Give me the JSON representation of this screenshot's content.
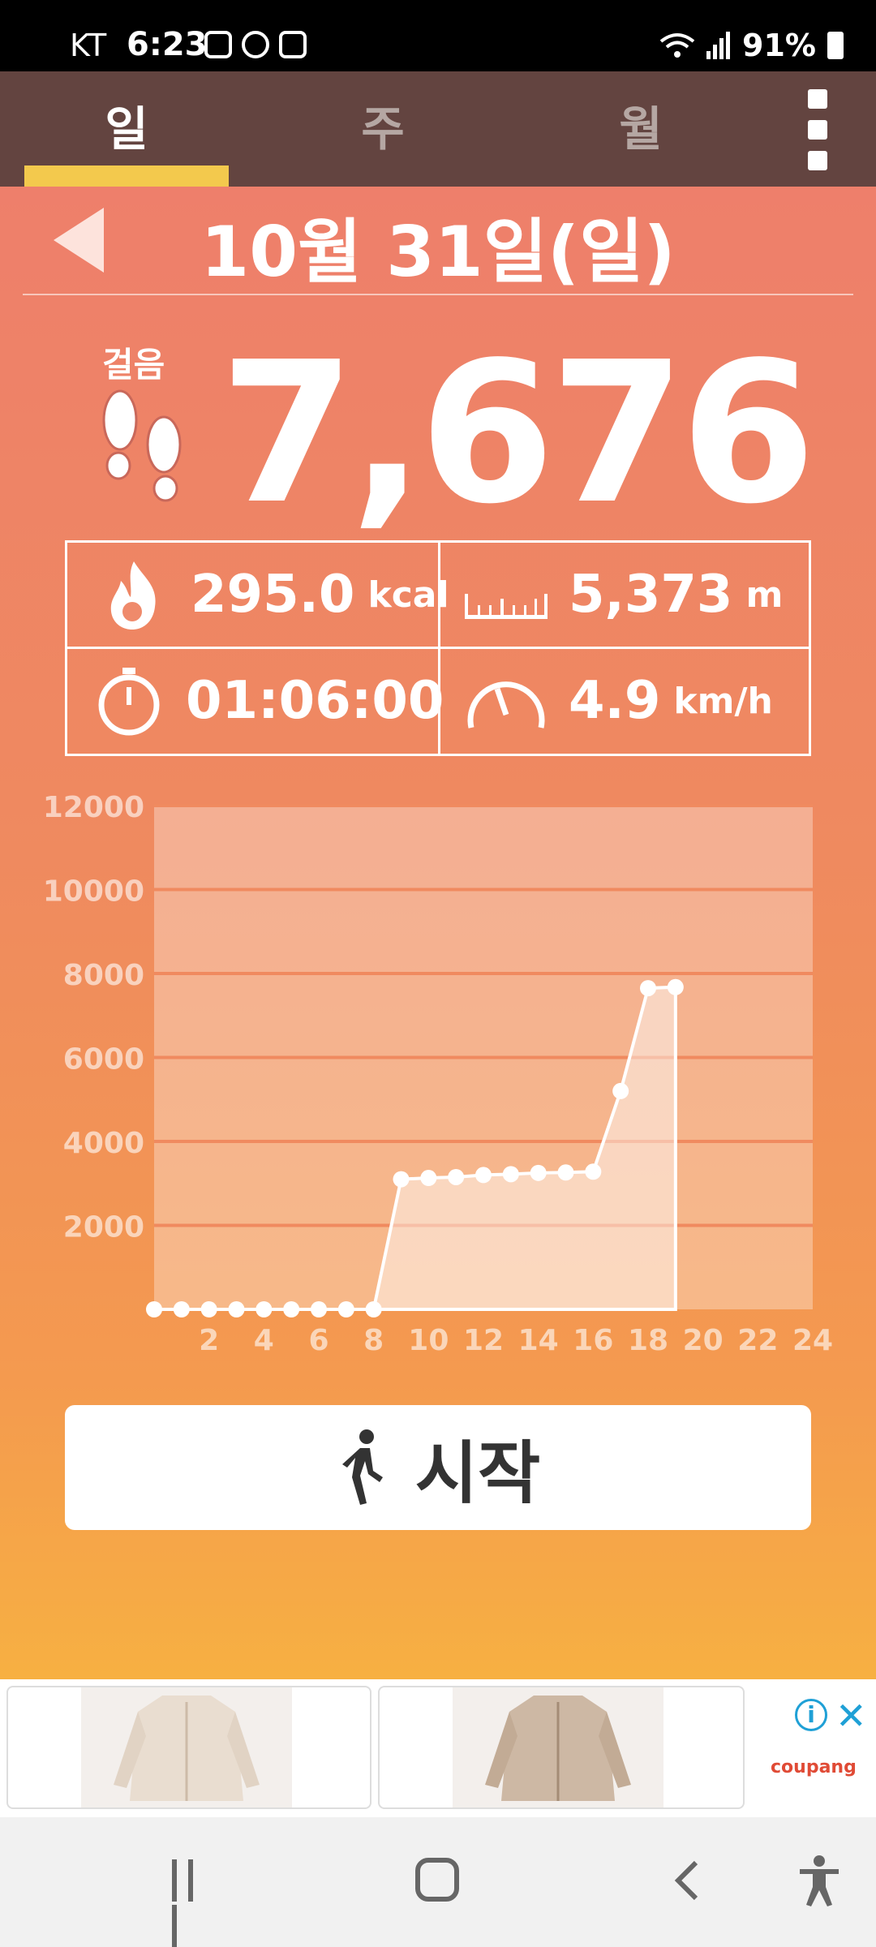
{
  "status_bar": {
    "carrier": "KT",
    "time": "6:23",
    "battery": "91%"
  },
  "tabs": [
    {
      "label": "일",
      "active": true
    },
    {
      "label": "주",
      "active": false
    },
    {
      "label": "월",
      "active": false
    }
  ],
  "header": {
    "date": "10월 31일(일)"
  },
  "steps": {
    "label": "걸음",
    "value": "7,676"
  },
  "stats": {
    "calories": {
      "value": "295.0",
      "unit": "kcal",
      "icon": "fire-icon"
    },
    "distance": {
      "value": "5,373",
      "unit": "m",
      "icon": "ruler-icon"
    },
    "duration": {
      "value": "01:06:00",
      "icon": "stopwatch-icon"
    },
    "speed": {
      "value": "4.9",
      "unit": "km/h",
      "icon": "speedometer-icon"
    }
  },
  "chart_data": {
    "type": "area",
    "x": [
      0,
      1,
      2,
      3,
      4,
      5,
      6,
      7,
      8,
      9,
      10,
      11,
      12,
      13,
      14,
      15,
      16,
      17,
      18,
      19
    ],
    "values": [
      0,
      0,
      0,
      0,
      0,
      0,
      0,
      0,
      0,
      3100,
      3130,
      3150,
      3200,
      3220,
      3250,
      3260,
      3280,
      5200,
      7650,
      7676
    ],
    "x_ticks": [
      2,
      4,
      6,
      8,
      10,
      12,
      14,
      16,
      18,
      20,
      22,
      24
    ],
    "y_ticks": [
      2000,
      4000,
      6000,
      8000,
      10000,
      12000
    ],
    "xlim": [
      0,
      24
    ],
    "ylim": [
      0,
      12000
    ],
    "grid": true
  },
  "start_button": {
    "label": "시작"
  },
  "ad": {
    "brand": "coupang",
    "info": "i"
  },
  "colors": {
    "tabbar": "#634440",
    "tab_indicator": "#f3c94d",
    "gradient_top": "#ee7f6b",
    "gradient_bottom": "#f7b042",
    "grid_line": "#f08a5f"
  }
}
